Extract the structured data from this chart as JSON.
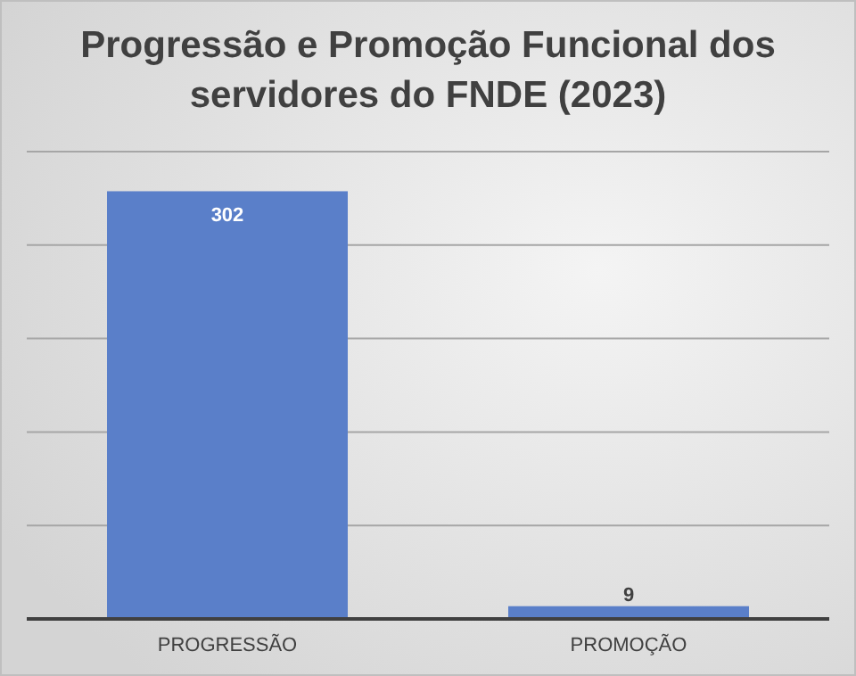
{
  "chart_data": {
    "type": "bar",
    "title": "Progressão e Promoção Funcional dos servidores do FNDE (2023)",
    "categories": [
      "PROGRESSÃO",
      "PROMOÇÃO"
    ],
    "values": [
      302,
      9
    ],
    "color": "#5a7fc9",
    "data_labels": true,
    "ylim": [
      0,
      330
    ],
    "yticks": [
      {
        "value": 0,
        "label": null
      },
      {
        "value": 66,
        "label": null
      },
      {
        "value": 132,
        "label": null
      },
      {
        "value": 198,
        "label": null
      },
      {
        "value": 264,
        "label": null
      },
      {
        "value": 330,
        "label": null
      }
    ],
    "grid": true
  }
}
